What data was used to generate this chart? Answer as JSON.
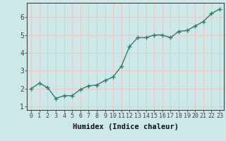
{
  "x": [
    0,
    1,
    2,
    3,
    4,
    5,
    6,
    7,
    8,
    9,
    10,
    11,
    12,
    13,
    14,
    15,
    16,
    17,
    18,
    19,
    20,
    21,
    22,
    23
  ],
  "y": [
    2.0,
    2.3,
    2.05,
    1.45,
    1.6,
    1.6,
    1.95,
    2.15,
    2.2,
    2.45,
    2.65,
    3.25,
    4.35,
    4.85,
    4.85,
    5.0,
    5.0,
    4.85,
    5.2,
    5.25,
    5.5,
    5.75,
    6.2,
    6.45
  ],
  "xlabel": "Humidex (Indice chaleur)",
  "ylim": [
    0.8,
    6.8
  ],
  "xlim": [
    -0.5,
    23.5
  ],
  "yticks": [
    1,
    2,
    3,
    4,
    5,
    6
  ],
  "xticks": [
    0,
    1,
    2,
    3,
    4,
    5,
    6,
    7,
    8,
    9,
    10,
    11,
    12,
    13,
    14,
    15,
    16,
    17,
    18,
    19,
    20,
    21,
    22,
    23
  ],
  "line_color": "#2e7d6e",
  "marker": "+",
  "marker_size": 4,
  "bg_color": "#cce8e8",
  "grid_color": "#e8c8c8",
  "axis_color": "#444444",
  "xlabel_fontsize": 7.5,
  "tick_fontsize": 6,
  "ytick_fontsize": 7,
  "linewidth": 1.0
}
